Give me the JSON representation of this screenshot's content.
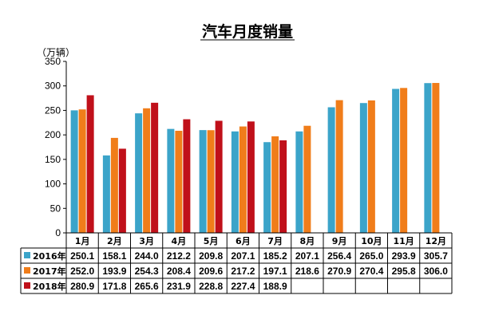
{
  "chart_data": {
    "type": "bar",
    "title": "汽车月度销量",
    "ylabel": "（万辆）",
    "ylim": [
      0,
      350
    ],
    "yticks": [
      0,
      50,
      100,
      150,
      200,
      250,
      300,
      350
    ],
    "grid": false,
    "legend": "table-rows-below",
    "categories": [
      "1月",
      "2月",
      "3月",
      "4月",
      "5月",
      "6月",
      "7月",
      "8月",
      "9月",
      "10月",
      "11月",
      "12月"
    ],
    "series": [
      {
        "name": "2016年",
        "color": "#3ba4c9",
        "values": [
          250.1,
          158.1,
          244.0,
          212.2,
          209.8,
          207.1,
          185.2,
          207.1,
          256.4,
          265.0,
          293.9,
          305.7
        ],
        "labels": [
          "250.1",
          "158.1",
          "244.0",
          "212.2",
          "209.8",
          "207.1",
          "185.2",
          "207.1",
          "256.4",
          "265.0",
          "293.9",
          "305.7"
        ]
      },
      {
        "name": "2017年",
        "color": "#f07d1a",
        "values": [
          252.0,
          193.9,
          254.3,
          208.4,
          209.6,
          217.2,
          197.1,
          218.6,
          270.9,
          270.4,
          295.8,
          306.0
        ],
        "labels": [
          "252.0",
          "193.9",
          "254.3",
          "208.4",
          "209.6",
          "217.2",
          "197.1",
          "218.6",
          "270.9",
          "270.4",
          "295.8",
          "306.0"
        ]
      },
      {
        "name": "2018年",
        "color": "#c0101a",
        "values": [
          280.9,
          171.8,
          265.6,
          231.9,
          228.8,
          227.4,
          188.9,
          null,
          null,
          null,
          null,
          null
        ],
        "labels": [
          "280.9",
          "171.8",
          "265.6",
          "231.9",
          "228.8",
          "227.4",
          "188.9",
          "",
          "",
          "",
          "",
          ""
        ]
      }
    ]
  }
}
